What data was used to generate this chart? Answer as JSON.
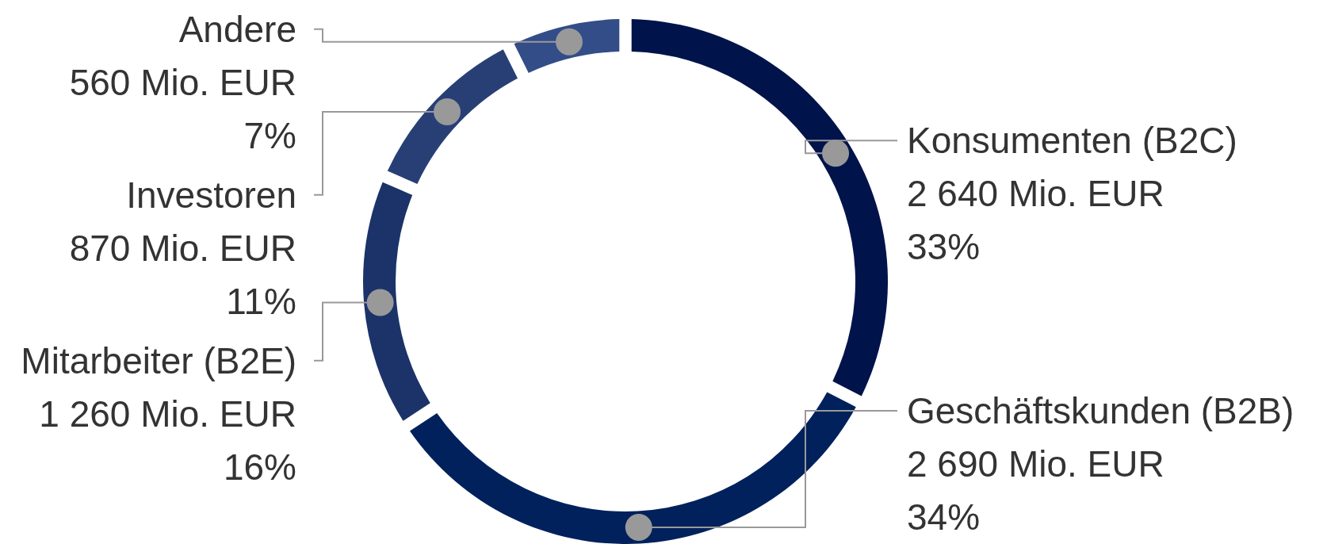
{
  "chart_data": {
    "type": "donut",
    "categories": [
      "Konsumenten (B2C)",
      "Geschäftskunden (B2B)",
      "Mitarbeiter (B2E)",
      "Investoren",
      "Andere"
    ],
    "values": [
      2640,
      2690,
      1260,
      870,
      560
    ],
    "colors": [
      "#00134a",
      "#00215c",
      "#1b3369",
      "#283f76",
      "#334d88"
    ],
    "value_labels": [
      "2 640 Mio. EUR\n33%",
      "2 690 Mio. EUR\n34%",
      "1 260 Mio. EUR\n16%",
      "870 Mio. EUR\n11%",
      "560 Mio. EUR\n7%"
    ]
  }
}
